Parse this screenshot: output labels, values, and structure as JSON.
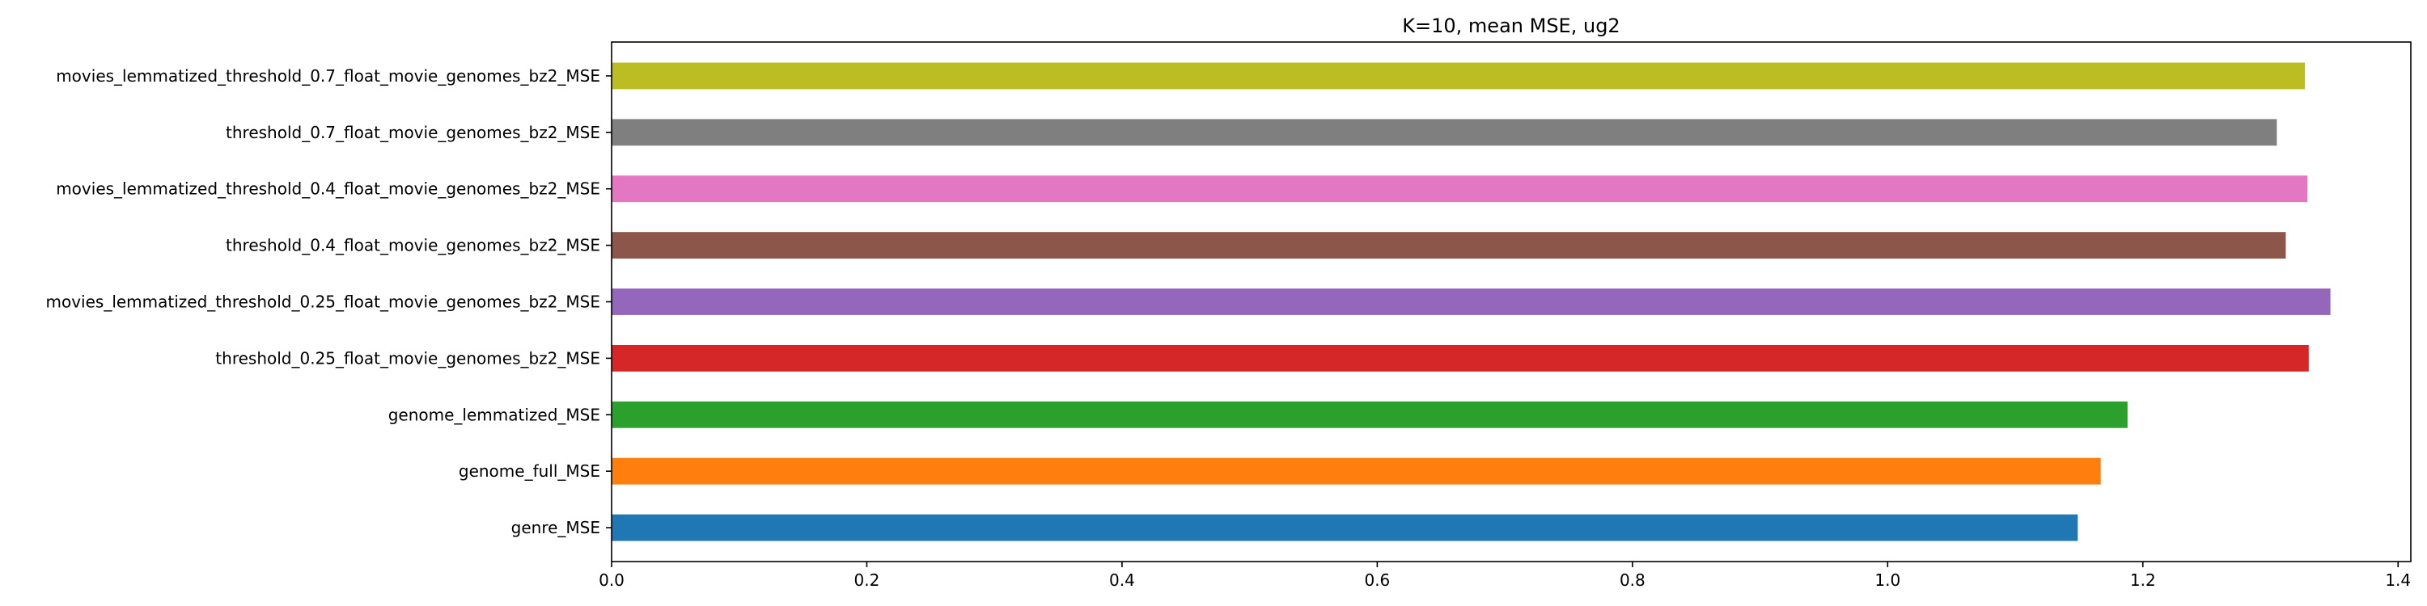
{
  "chart_data": {
    "type": "bar",
    "orientation": "horizontal",
    "title": "K=10, mean MSE, ug2",
    "xlabel": "",
    "ylabel": "",
    "xlim": [
      0,
      1.41
    ],
    "xticks": [
      0.0,
      0.2,
      0.4,
      0.6,
      0.8,
      1.0,
      1.2,
      1.4
    ],
    "xtick_labels": [
      "0.0",
      "0.2",
      "0.4",
      "0.6",
      "0.8",
      "1.0",
      "1.2",
      "1.4"
    ],
    "grid": false,
    "legend": "none",
    "categories": [
      "genre_MSE",
      "genome_full_MSE",
      "genome_lemmatized_MSE",
      "threshold_0.25_float_movie_genomes_bz2_MSE",
      "movies_lemmatized_threshold_0.25_float_movie_genomes_bz2_MSE",
      "threshold_0.4_float_movie_genomes_bz2_MSE",
      "movies_lemmatized_threshold_0.4_float_movie_genomes_bz2_MSE",
      "threshold_0.7_float_movie_genomes_bz2_MSE",
      "movies_lemmatized_threshold_0.7_float_movie_genomes_bz2_MSE"
    ],
    "values": [
      1.149,
      1.167,
      1.188,
      1.33,
      1.347,
      1.312,
      1.329,
      1.305,
      1.327
    ],
    "colors": [
      "#1f77b4",
      "#ff7f0e",
      "#2ca02c",
      "#d62728",
      "#9467bd",
      "#8c564b",
      "#e377c2",
      "#7f7f7f",
      "#bcbd22"
    ]
  }
}
